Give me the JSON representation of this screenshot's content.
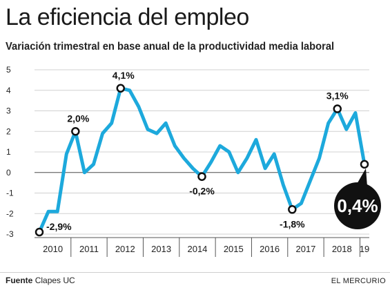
{
  "header": {
    "title": "La eficiencia del empleo",
    "subtitle": "Variación trimestral en base anual de la productividad media laboral"
  },
  "footer": {
    "source_label": "Fuente",
    "source_value": "Clapes UC",
    "brand": "EL MERCURIO"
  },
  "colors": {
    "line": "#1da9dc",
    "grid": "#d0d0d0",
    "callout": "#111111"
  },
  "chart_data": {
    "type": "line",
    "title": "La eficiencia del empleo",
    "subtitle": "Variación trimestral en base anual de la productividad media laboral",
    "ylim": [
      -3,
      5
    ],
    "yticks": [
      "5",
      "4",
      "3",
      "2",
      "1",
      "0",
      "-1",
      "-2",
      "-3"
    ],
    "year_labels": [
      "2010",
      "2011",
      "2012",
      "2013",
      "2014",
      "2015",
      "2016",
      "2017",
      "2018",
      "19"
    ],
    "values": [
      -2.9,
      -1.9,
      -1.9,
      0.9,
      2.0,
      0.0,
      0.4,
      1.9,
      2.4,
      4.1,
      4.0,
      3.2,
      2.1,
      1.9,
      2.4,
      1.3,
      0.7,
      0.2,
      -0.2,
      0.5,
      1.3,
      1.0,
      0.0,
      0.7,
      1.6,
      0.2,
      0.9,
      -0.6,
      -1.8,
      -1.5,
      -0.4,
      0.7,
      2.4,
      3.1,
      2.1,
      2.9,
      0.4
    ],
    "highlights": [
      {
        "index": 0,
        "label": "-2,9%"
      },
      {
        "index": 4,
        "label": "2,0%"
      },
      {
        "index": 9,
        "label": "4,1%"
      },
      {
        "index": 18,
        "label": "-0,2%"
      },
      {
        "index": 28,
        "label": "-1,8%"
      },
      {
        "index": 33,
        "label": "3,1%"
      }
    ],
    "callout": {
      "index": 36,
      "label": "0,4%"
    },
    "grid": true
  }
}
